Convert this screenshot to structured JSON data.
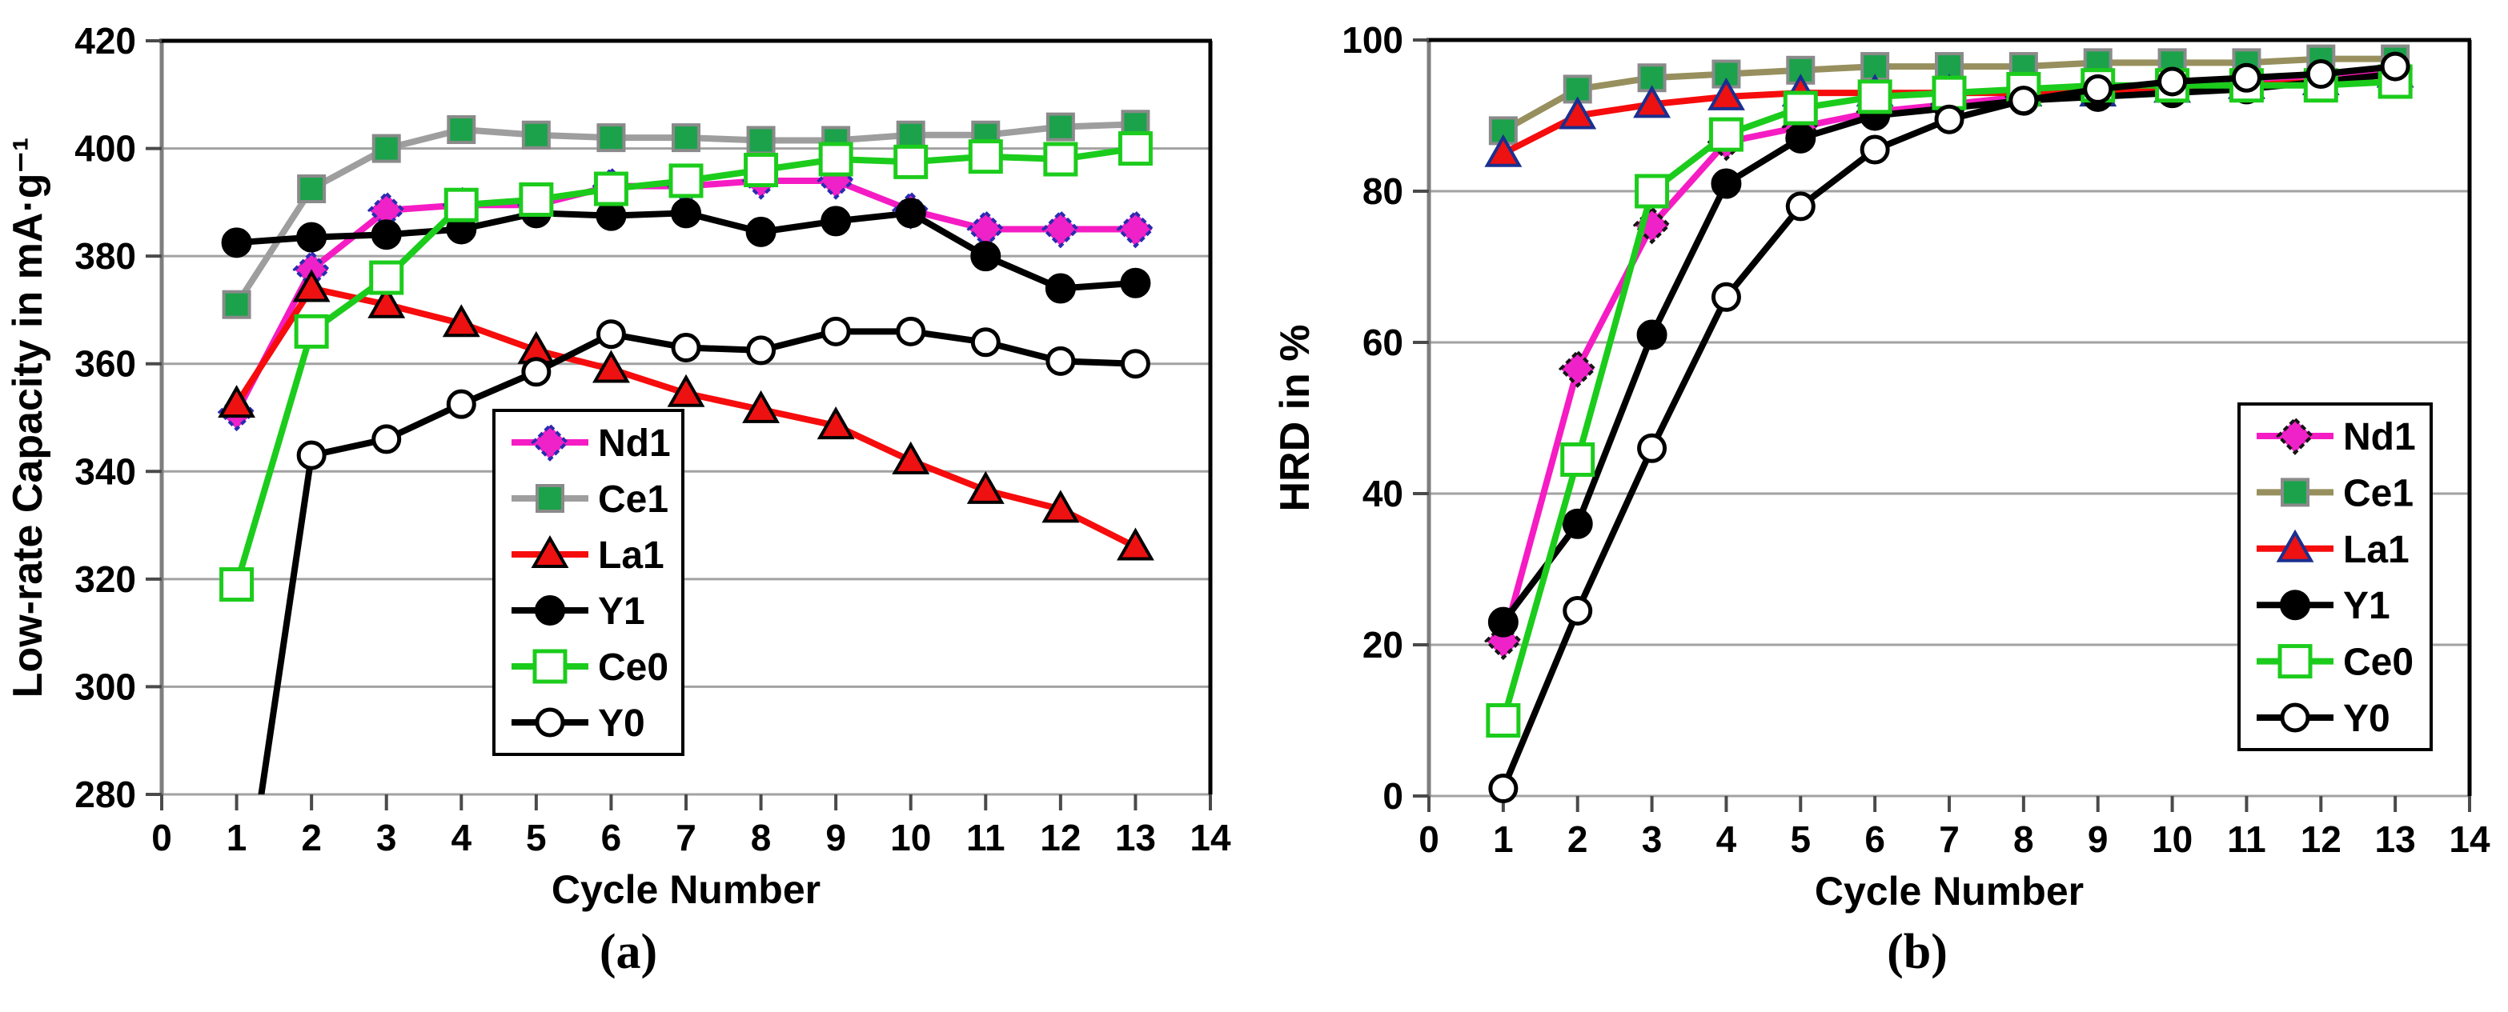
{
  "figure": {
    "background": "#ffffff",
    "caption_a": "(a)",
    "caption_b": "(b)"
  },
  "chart_data": [
    {
      "id": "a",
      "type": "line",
      "caption": "(a)",
      "xlabel": "Cycle Number",
      "ylabel": "Low-rate Capacity in mA·g⁻¹",
      "xlim": [
        0,
        14
      ],
      "ylim": [
        280,
        420
      ],
      "xticks": [
        0,
        1,
        2,
        3,
        4,
        5,
        6,
        7,
        8,
        9,
        10,
        11,
        12,
        13,
        14
      ],
      "yticks": [
        280,
        300,
        320,
        340,
        360,
        380,
        400,
        420
      ],
      "grid": true,
      "legend_position": "inside-center-left",
      "x": [
        1,
        2,
        3,
        4,
        5,
        6,
        7,
        8,
        9,
        10,
        11,
        12,
        13
      ],
      "series": [
        {
          "name": "Nd1",
          "line_color": "#F51CC4",
          "marker": "diamond",
          "marker_fill": "#EE22C8",
          "marker_stroke": "#2B2BB0",
          "marker_dashed": true,
          "values": [
            351,
            377.5,
            388.5,
            389.5,
            389.5,
            393,
            393,
            394,
            394,
            388.5,
            385,
            385,
            385
          ]
        },
        {
          "name": "Ce1",
          "line_color": "#9E9E9E",
          "marker": "square",
          "marker_fill": "#1CA24B",
          "marker_stroke": "#8A8A8A",
          "values": [
            371,
            392.5,
            400,
            403.5,
            402.5,
            402,
            402,
            401.5,
            401.5,
            402.5,
            402.5,
            404,
            404.5
          ]
        },
        {
          "name": "La1",
          "line_color": "#F60C0C",
          "marker": "triangle",
          "marker_fill": "#EE1111",
          "marker_stroke": "#000000",
          "values": [
            352.5,
            374,
            371,
            367.5,
            362.5,
            359,
            354.5,
            351.5,
            348.5,
            342,
            336.5,
            333,
            326
          ]
        },
        {
          "name": "Y1",
          "line_color": "#000000",
          "marker": "circle",
          "marker_fill": "#000000",
          "marker_stroke": "#000000",
          "values": [
            382.5,
            383.5,
            384,
            385,
            388,
            387.5,
            388,
            384.5,
            386.5,
            388,
            380,
            374,
            375
          ]
        },
        {
          "name": "Ce0",
          "line_color": "#1CCC1C",
          "marker": "square-open",
          "marker_fill": "#FFFFFF",
          "marker_stroke": "#1CCC1C",
          "values": [
            319,
            366,
            376,
            389.5,
            390.5,
            392.5,
            394,
            396,
            398,
            397.5,
            398.5,
            398,
            400
          ]
        },
        {
          "name": "Y0",
          "line_color": "#000000",
          "marker": "circle-open",
          "marker_fill": "#FFFFFF",
          "marker_stroke": "#000000",
          "values": [
            null,
            343,
            346,
            352.5,
            358.5,
            365.5,
            363,
            362.5,
            366,
            366,
            364,
            360.5,
            360
          ],
          "line_enters_from_below_axis": true,
          "clip_entry_value": 249
        }
      ]
    },
    {
      "id": "b",
      "type": "line",
      "caption": "(b)",
      "xlabel": "Cycle Number",
      "ylabel": "HRD in %",
      "xlim": [
        0,
        14
      ],
      "ylim": [
        0,
        100
      ],
      "xticks": [
        0,
        1,
        2,
        3,
        4,
        5,
        6,
        7,
        8,
        9,
        10,
        11,
        12,
        13,
        14
      ],
      "yticks": [
        0,
        20,
        40,
        60,
        80,
        100
      ],
      "grid": true,
      "legend_position": "inside-right",
      "x": [
        1,
        2,
        3,
        4,
        5,
        6,
        7,
        8,
        9,
        10,
        11,
        12,
        13
      ],
      "series": [
        {
          "name": "Nd1",
          "line_color": "#F51CC4",
          "marker": "diamond",
          "marker_fill": "#EE22C8",
          "marker_stroke": "#151515",
          "marker_dashed": true,
          "values": [
            20.5,
            56.5,
            75.5,
            86.5,
            88.5,
            90.5,
            91.5,
            92.5,
            93,
            93.5,
            94.5,
            95.5,
            96
          ]
        },
        {
          "name": "Ce1",
          "line_color": "#97905E",
          "marker": "square",
          "marker_fill": "#1CA24B",
          "marker_stroke": "#8A8A8A",
          "values": [
            88,
            93.5,
            95,
            95.5,
            96,
            96.5,
            96.5,
            96.5,
            97,
            97,
            97,
            97.5,
            97.5
          ]
        },
        {
          "name": "La1",
          "line_color": "#F60C0C",
          "marker": "triangle",
          "marker_fill": "#EE1111",
          "marker_stroke": "#1A2F8F",
          "values": [
            85,
            90,
            91.5,
            92.5,
            93,
            93,
            93,
            93,
            93,
            93.5,
            94,
            94.5,
            95.5
          ]
        },
        {
          "name": "Y1",
          "line_color": "#000000",
          "marker": "circle",
          "marker_fill": "#000000",
          "marker_stroke": "#000000",
          "values": [
            23,
            36,
            61,
            81,
            87,
            90,
            91,
            92,
            92.5,
            93,
            93.5,
            94.5,
            95.5
          ]
        },
        {
          "name": "Ce0",
          "line_color": "#1CCC1C",
          "marker": "square-open",
          "marker_fill": "#FFFFFF",
          "marker_stroke": "#1CCC1C",
          "values": [
            10,
            44.5,
            80,
            87.5,
            91,
            92.5,
            93,
            93.5,
            94,
            94,
            94,
            94,
            94.5
          ]
        },
        {
          "name": "Y0",
          "line_color": "#000000",
          "marker": "circle-open",
          "marker_fill": "#FFFFFF",
          "marker_stroke": "#000000",
          "values": [
            1,
            24.5,
            46,
            66,
            78,
            85.5,
            89.5,
            92,
            93.5,
            94.5,
            95,
            95.5,
            96.5
          ]
        }
      ]
    }
  ]
}
